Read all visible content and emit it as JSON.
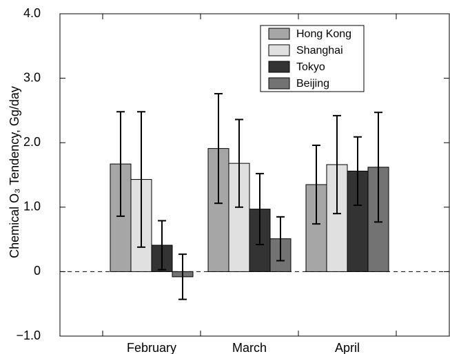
{
  "chart_data": {
    "type": "bar",
    "y_label": "Chemical O₃ Tendency, Gg/day",
    "categories": [
      "February",
      "March",
      "April"
    ],
    "series": [
      {
        "name": "Hong Kong",
        "color": "#a6a6a6",
        "values": [
          1.67,
          1.91,
          1.35
        ],
        "errors": [
          0.81,
          0.85,
          0.61
        ]
      },
      {
        "name": "Shanghai",
        "color": "#e0e0e0",
        "values": [
          1.43,
          1.68,
          1.66
        ],
        "errors": [
          1.05,
          0.68,
          0.76
        ]
      },
      {
        "name": "Tokyo",
        "color": "#333333",
        "values": [
          0.41,
          0.97,
          1.56
        ],
        "errors": [
          0.38,
          0.55,
          0.53
        ]
      },
      {
        "name": "Beijing",
        "color": "#737373",
        "values": [
          -0.08,
          0.51,
          1.62
        ],
        "errors": [
          0.35,
          0.34,
          0.85
        ]
      }
    ],
    "ylim": [
      -1,
      4
    ],
    "yticks": [
      {
        "value": -1,
        "label": "−1.0"
      },
      0,
      {
        "value": 1,
        "label": "1.0"
      },
      {
        "value": 2,
        "label": "2.0"
      },
      {
        "value": 3,
        "label": "3.0"
      },
      {
        "value": 4,
        "label": "4.0"
      }
    ],
    "legend": "top-right"
  }
}
